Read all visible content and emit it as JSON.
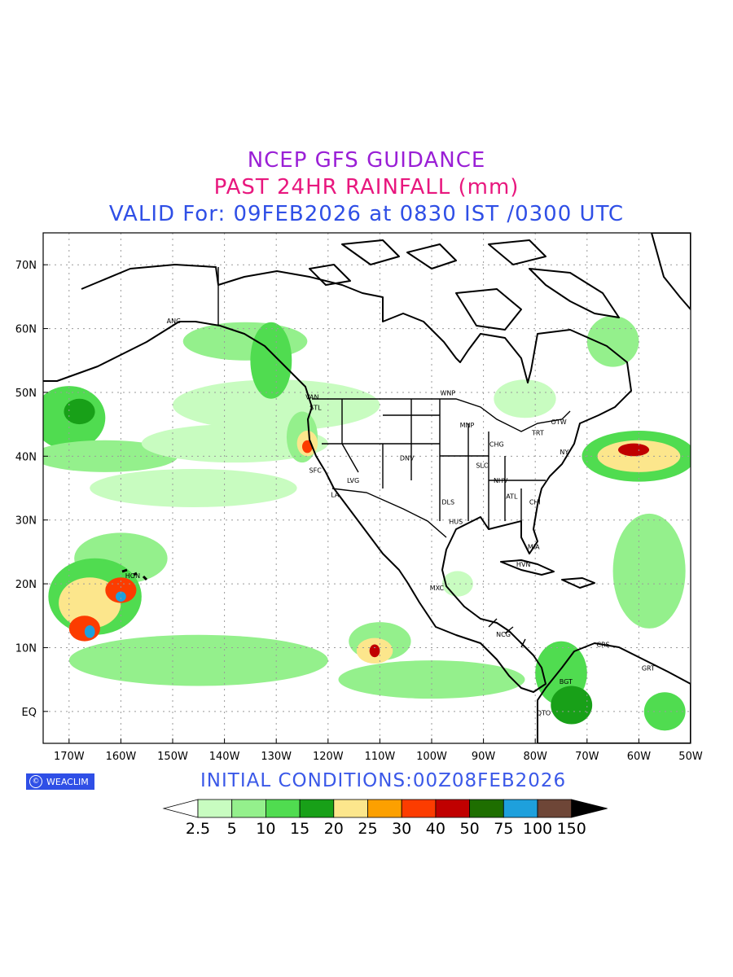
{
  "titles": {
    "line1": "NCEP GFS GUIDANCE",
    "line2": "PAST 24HR RAINFALL (mm)",
    "line3": "VALID For: 09FEB2026 at 0830 IST /0300 UTC"
  },
  "brand": {
    "label": "WEACLIM",
    "logo_glyph": "©"
  },
  "initial_conditions": "INITIAL CONDITIONS:00Z08FEB2026",
  "axes": {
    "lon_labels": [
      "170W",
      "160W",
      "150W",
      "140W",
      "130W",
      "120W",
      "110W",
      "100W",
      "90W",
      "80W",
      "70W",
      "60W",
      "50W"
    ],
    "lat_labels": [
      "70N",
      "60N",
      "50N",
      "40N",
      "30N",
      "20N",
      "10N",
      "EQ"
    ],
    "lon_range": [
      -175,
      -50
    ],
    "lat_range": [
      -5,
      75
    ]
  },
  "legend": {
    "labels": [
      "2.5",
      "5",
      "10",
      "15",
      "20",
      "25",
      "30",
      "40",
      "50",
      "75",
      "100",
      "150"
    ],
    "colors": [
      "#c8fcc0",
      "#94f08c",
      "#50dc50",
      "#18a018",
      "#fce68c",
      "#fca000",
      "#fc3c00",
      "#c00000",
      "#1e6e00",
      "#1ea0dc",
      "#6e4637"
    ],
    "under_color": "#ffffff",
    "over_color": "#000000"
  },
  "stations": [
    {
      "name": "ANC",
      "lon": -149.9,
      "lat": 61.2
    },
    {
      "name": "VAN",
      "lon": -123.1,
      "lat": 49.3
    },
    {
      "name": "STL",
      "lon": -122.3,
      "lat": 47.6
    },
    {
      "name": "WNP",
      "lon": -97.1,
      "lat": 49.9
    },
    {
      "name": "MNP",
      "lon": -93.3,
      "lat": 44.9
    },
    {
      "name": "OTW",
      "lon": -75.7,
      "lat": 45.4
    },
    {
      "name": "TRT",
      "lon": -79.4,
      "lat": 43.7
    },
    {
      "name": "CHG",
      "lon": -87.6,
      "lat": 41.9
    },
    {
      "name": "NY",
      "lon": -74.0,
      "lat": 40.7
    },
    {
      "name": "DNV",
      "lon": -104.9,
      "lat": 39.7
    },
    {
      "name": "SFC",
      "lon": -122.4,
      "lat": 37.8
    },
    {
      "name": "LVG",
      "lon": -115.1,
      "lat": 36.2
    },
    {
      "name": "SLC",
      "lon": -90.2,
      "lat": 38.6
    },
    {
      "name": "NHV",
      "lon": -86.8,
      "lat": 36.2
    },
    {
      "name": "LA",
      "lon": -118.2,
      "lat": 34.0
    },
    {
      "name": "DLS",
      "lon": -96.8,
      "lat": 32.8
    },
    {
      "name": "ATL",
      "lon": -84.4,
      "lat": 33.7
    },
    {
      "name": "CHI",
      "lon": -79.9,
      "lat": 32.8
    },
    {
      "name": "HUS",
      "lon": -95.4,
      "lat": 29.8
    },
    {
      "name": "MIA",
      "lon": -80.2,
      "lat": 25.8
    },
    {
      "name": "HVN",
      "lon": -82.4,
      "lat": 23.1
    },
    {
      "name": "HON",
      "lon": -157.9,
      "lat": 21.3
    },
    {
      "name": "MXC",
      "lon": -99.1,
      "lat": 19.4
    },
    {
      "name": "NCG",
      "lon": -86.3,
      "lat": 12.1
    },
    {
      "name": "CRS",
      "lon": -66.9,
      "lat": 10.5
    },
    {
      "name": "GRT",
      "lon": -58.2,
      "lat": 6.8
    },
    {
      "name": "BGT",
      "lon": -74.1,
      "lat": 4.7
    },
    {
      "name": "QTO",
      "lon": -78.5,
      "lat": -0.2
    }
  ],
  "rainfall_areas": [
    {
      "lon": -170,
      "lat": 46,
      "rx": 7,
      "ry": 5,
      "level": 2
    },
    {
      "lon": -168,
      "lat": 47,
      "rx": 3,
      "ry": 2,
      "level": 3
    },
    {
      "lon": -163,
      "lat": 40,
      "rx": 14,
      "ry": 2.5,
      "level": 1
    },
    {
      "lon": -130,
      "lat": 48,
      "rx": 20,
      "ry": 4,
      "level": 0
    },
    {
      "lon": -138,
      "lat": 42,
      "rx": 18,
      "ry": 3,
      "level": 0
    },
    {
      "lon": -146,
      "lat": 35,
      "rx": 20,
      "ry": 3,
      "level": 0
    },
    {
      "lon": -136,
      "lat": 58,
      "rx": 12,
      "ry": 3,
      "level": 1
    },
    {
      "lon": -131,
      "lat": 55,
      "rx": 4,
      "ry": 6,
      "level": 2
    },
    {
      "lon": -125,
      "lat": 43,
      "rx": 3,
      "ry": 4,
      "level": 1
    },
    {
      "lon": -124,
      "lat": 42,
      "rx": 2,
      "ry": 2,
      "level": 4
    },
    {
      "lon": -124,
      "lat": 41.5,
      "rx": 1,
      "ry": 1,
      "level": 6
    },
    {
      "lon": -160,
      "lat": 24,
      "rx": 9,
      "ry": 4,
      "level": 1
    },
    {
      "lon": -165,
      "lat": 18,
      "rx": 9,
      "ry": 6,
      "level": 2
    },
    {
      "lon": -166,
      "lat": 17,
      "rx": 6,
      "ry": 4,
      "level": 4
    },
    {
      "lon": -167,
      "lat": 13,
      "rx": 3,
      "ry": 2,
      "level": 6
    },
    {
      "lon": -160,
      "lat": 19,
      "rx": 3,
      "ry": 2,
      "level": 6
    },
    {
      "lon": -166,
      "lat": 12.5,
      "rx": 1,
      "ry": 1,
      "level": 9
    },
    {
      "lon": -160,
      "lat": 18,
      "rx": 1,
      "ry": 0.8,
      "level": 9
    },
    {
      "lon": -145,
      "lat": 8,
      "rx": 25,
      "ry": 4,
      "level": 1
    },
    {
      "lon": -110,
      "lat": 11,
      "rx": 6,
      "ry": 3,
      "level": 1
    },
    {
      "lon": -111,
      "lat": 9.5,
      "rx": 3.5,
      "ry": 2,
      "level": 4
    },
    {
      "lon": -111,
      "lat": 9.5,
      "rx": 1,
      "ry": 1,
      "level": 7
    },
    {
      "lon": -100,
      "lat": 5,
      "rx": 18,
      "ry": 3,
      "level": 1
    },
    {
      "lon": -60,
      "lat": 40,
      "rx": 11,
      "ry": 4,
      "level": 2
    },
    {
      "lon": -60,
      "lat": 40,
      "rx": 8,
      "ry": 2.5,
      "level": 4
    },
    {
      "lon": -61,
      "lat": 41,
      "rx": 3,
      "ry": 1,
      "level": 7
    },
    {
      "lon": -58,
      "lat": 22,
      "rx": 7,
      "ry": 9,
      "level": 1
    },
    {
      "lon": -75,
      "lat": 6,
      "rx": 5,
      "ry": 5,
      "level": 2
    },
    {
      "lon": -73,
      "lat": 1,
      "rx": 4,
      "ry": 3,
      "level": 3
    },
    {
      "lon": -55,
      "lat": 0,
      "rx": 4,
      "ry": 3,
      "level": 2
    },
    {
      "lon": -82,
      "lat": 49,
      "rx": 6,
      "ry": 3,
      "level": 0
    },
    {
      "lon": -65,
      "lat": 58,
      "rx": 5,
      "ry": 4,
      "level": 1
    },
    {
      "lon": -95,
      "lat": 20,
      "rx": 3,
      "ry": 2,
      "level": 0
    }
  ]
}
